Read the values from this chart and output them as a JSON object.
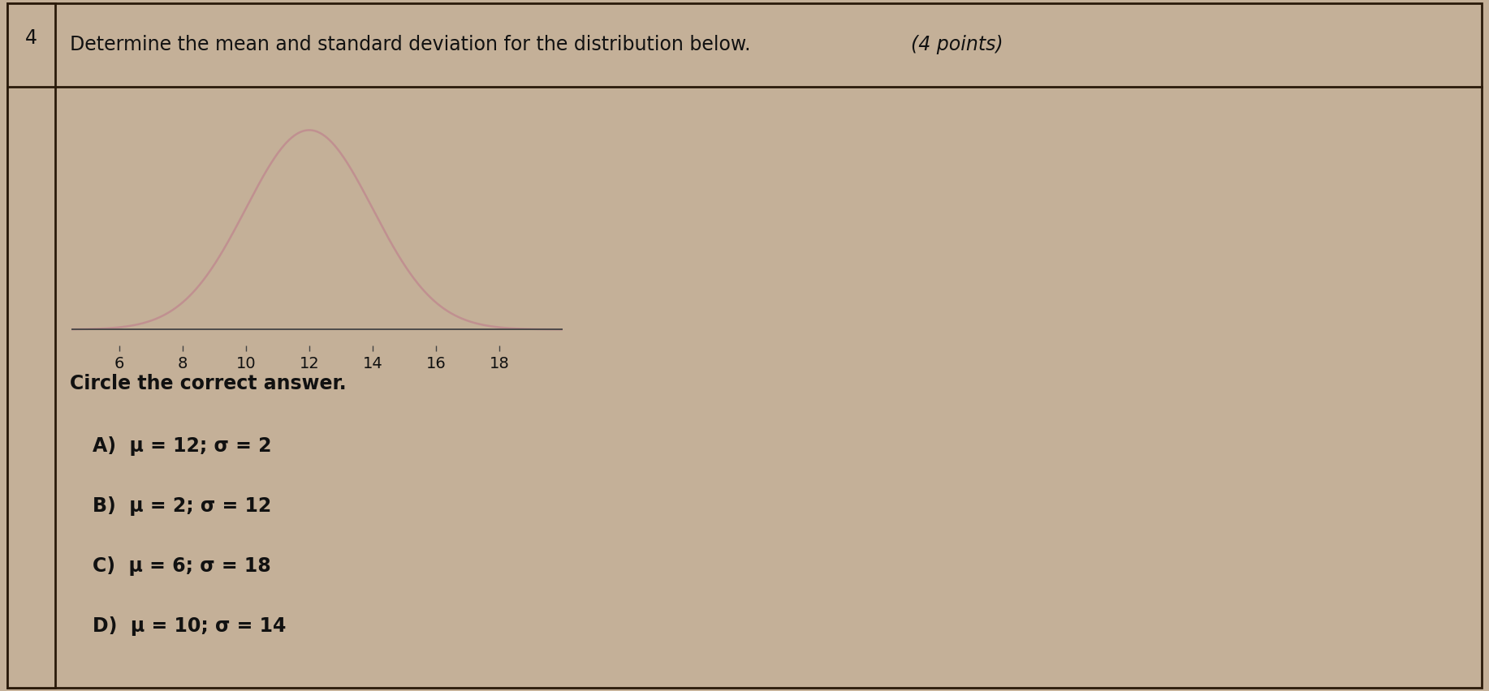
{
  "question_number": "4",
  "title_normal": "Determine the mean and standard deviation for the distribution below. ",
  "title_italic": "(4 points)",
  "curve_mu": 12,
  "curve_sigma": 2,
  "x_ticks": [
    6,
    8,
    10,
    12,
    14,
    16,
    18
  ],
  "x_min": 4.5,
  "x_max": 20,
  "curve_color": "#c09090",
  "axis_line_color": "#444444",
  "background_color": "#c4b098",
  "border_color": "#2a1a0a",
  "text_color": "#111111",
  "tick_color": "#444444",
  "circle_text": "Circle the correct answer.",
  "options": [
    "A)  μ = 12; σ = 2",
    "B)  μ = 2; σ = 12",
    "C)  μ = 6; σ = 18",
    "D)  μ = 10; σ = 14"
  ],
  "fontsize_title": 17,
  "fontsize_options": 17,
  "fontsize_circle": 17,
  "fontsize_qnum": 17,
  "fontsize_ticks": 14
}
